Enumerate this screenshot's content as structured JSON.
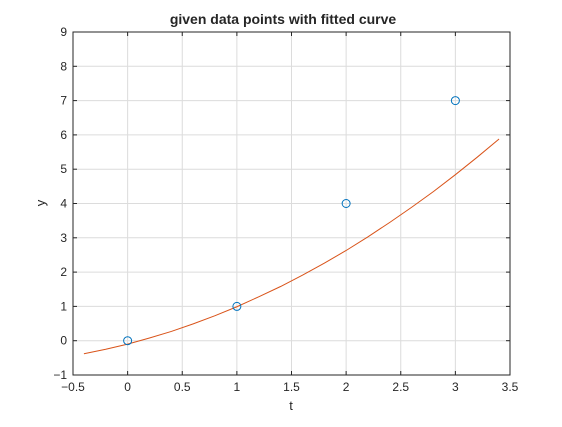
{
  "chart_data": {
    "type": "scatter",
    "title": "given data points with fitted curve",
    "xlabel": "t",
    "ylabel": "y",
    "xlim": [
      -0.5,
      3.5
    ],
    "ylim": [
      -1,
      9
    ],
    "xticks": [
      -0.5,
      0,
      0.5,
      1,
      1.5,
      2,
      2.5,
      3,
      3.5
    ],
    "xtick_labels": [
      "−0.5",
      "0",
      "0.5",
      "1",
      "1.5",
      "2",
      "2.5",
      "3",
      "3.5"
    ],
    "yticks": [
      -1,
      0,
      1,
      2,
      3,
      4,
      5,
      6,
      7,
      8,
      9
    ],
    "ytick_labels": [
      "−1",
      "0",
      "1",
      "2",
      "3",
      "4",
      "5",
      "6",
      "7",
      "8",
      "9"
    ],
    "grid": true,
    "legend": "none",
    "colors": {
      "points": "#0072BD",
      "curve": "#D95319",
      "grid": "#dcdcdc",
      "axes": "#262626"
    },
    "series": [
      {
        "type": "scatter",
        "marker": "circle",
        "x": [
          0,
          1,
          2,
          3
        ],
        "y": [
          0,
          1,
          4,
          7
        ]
      },
      {
        "type": "line",
        "x": [
          -0.4,
          -0.2,
          0.0,
          0.2,
          0.4,
          0.6,
          0.8,
          1.0,
          1.2,
          1.4,
          1.6,
          1.8,
          2.0,
          2.2,
          2.4,
          2.6,
          2.8,
          3.0,
          3.2,
          3.4
        ],
        "y": [
          -0.38,
          -0.25,
          -0.1,
          0.08,
          0.27,
          0.49,
          0.73,
          0.99,
          1.28,
          1.58,
          1.91,
          2.26,
          2.63,
          3.03,
          3.45,
          3.89,
          4.35,
          4.84,
          5.35,
          5.88
        ]
      }
    ]
  }
}
